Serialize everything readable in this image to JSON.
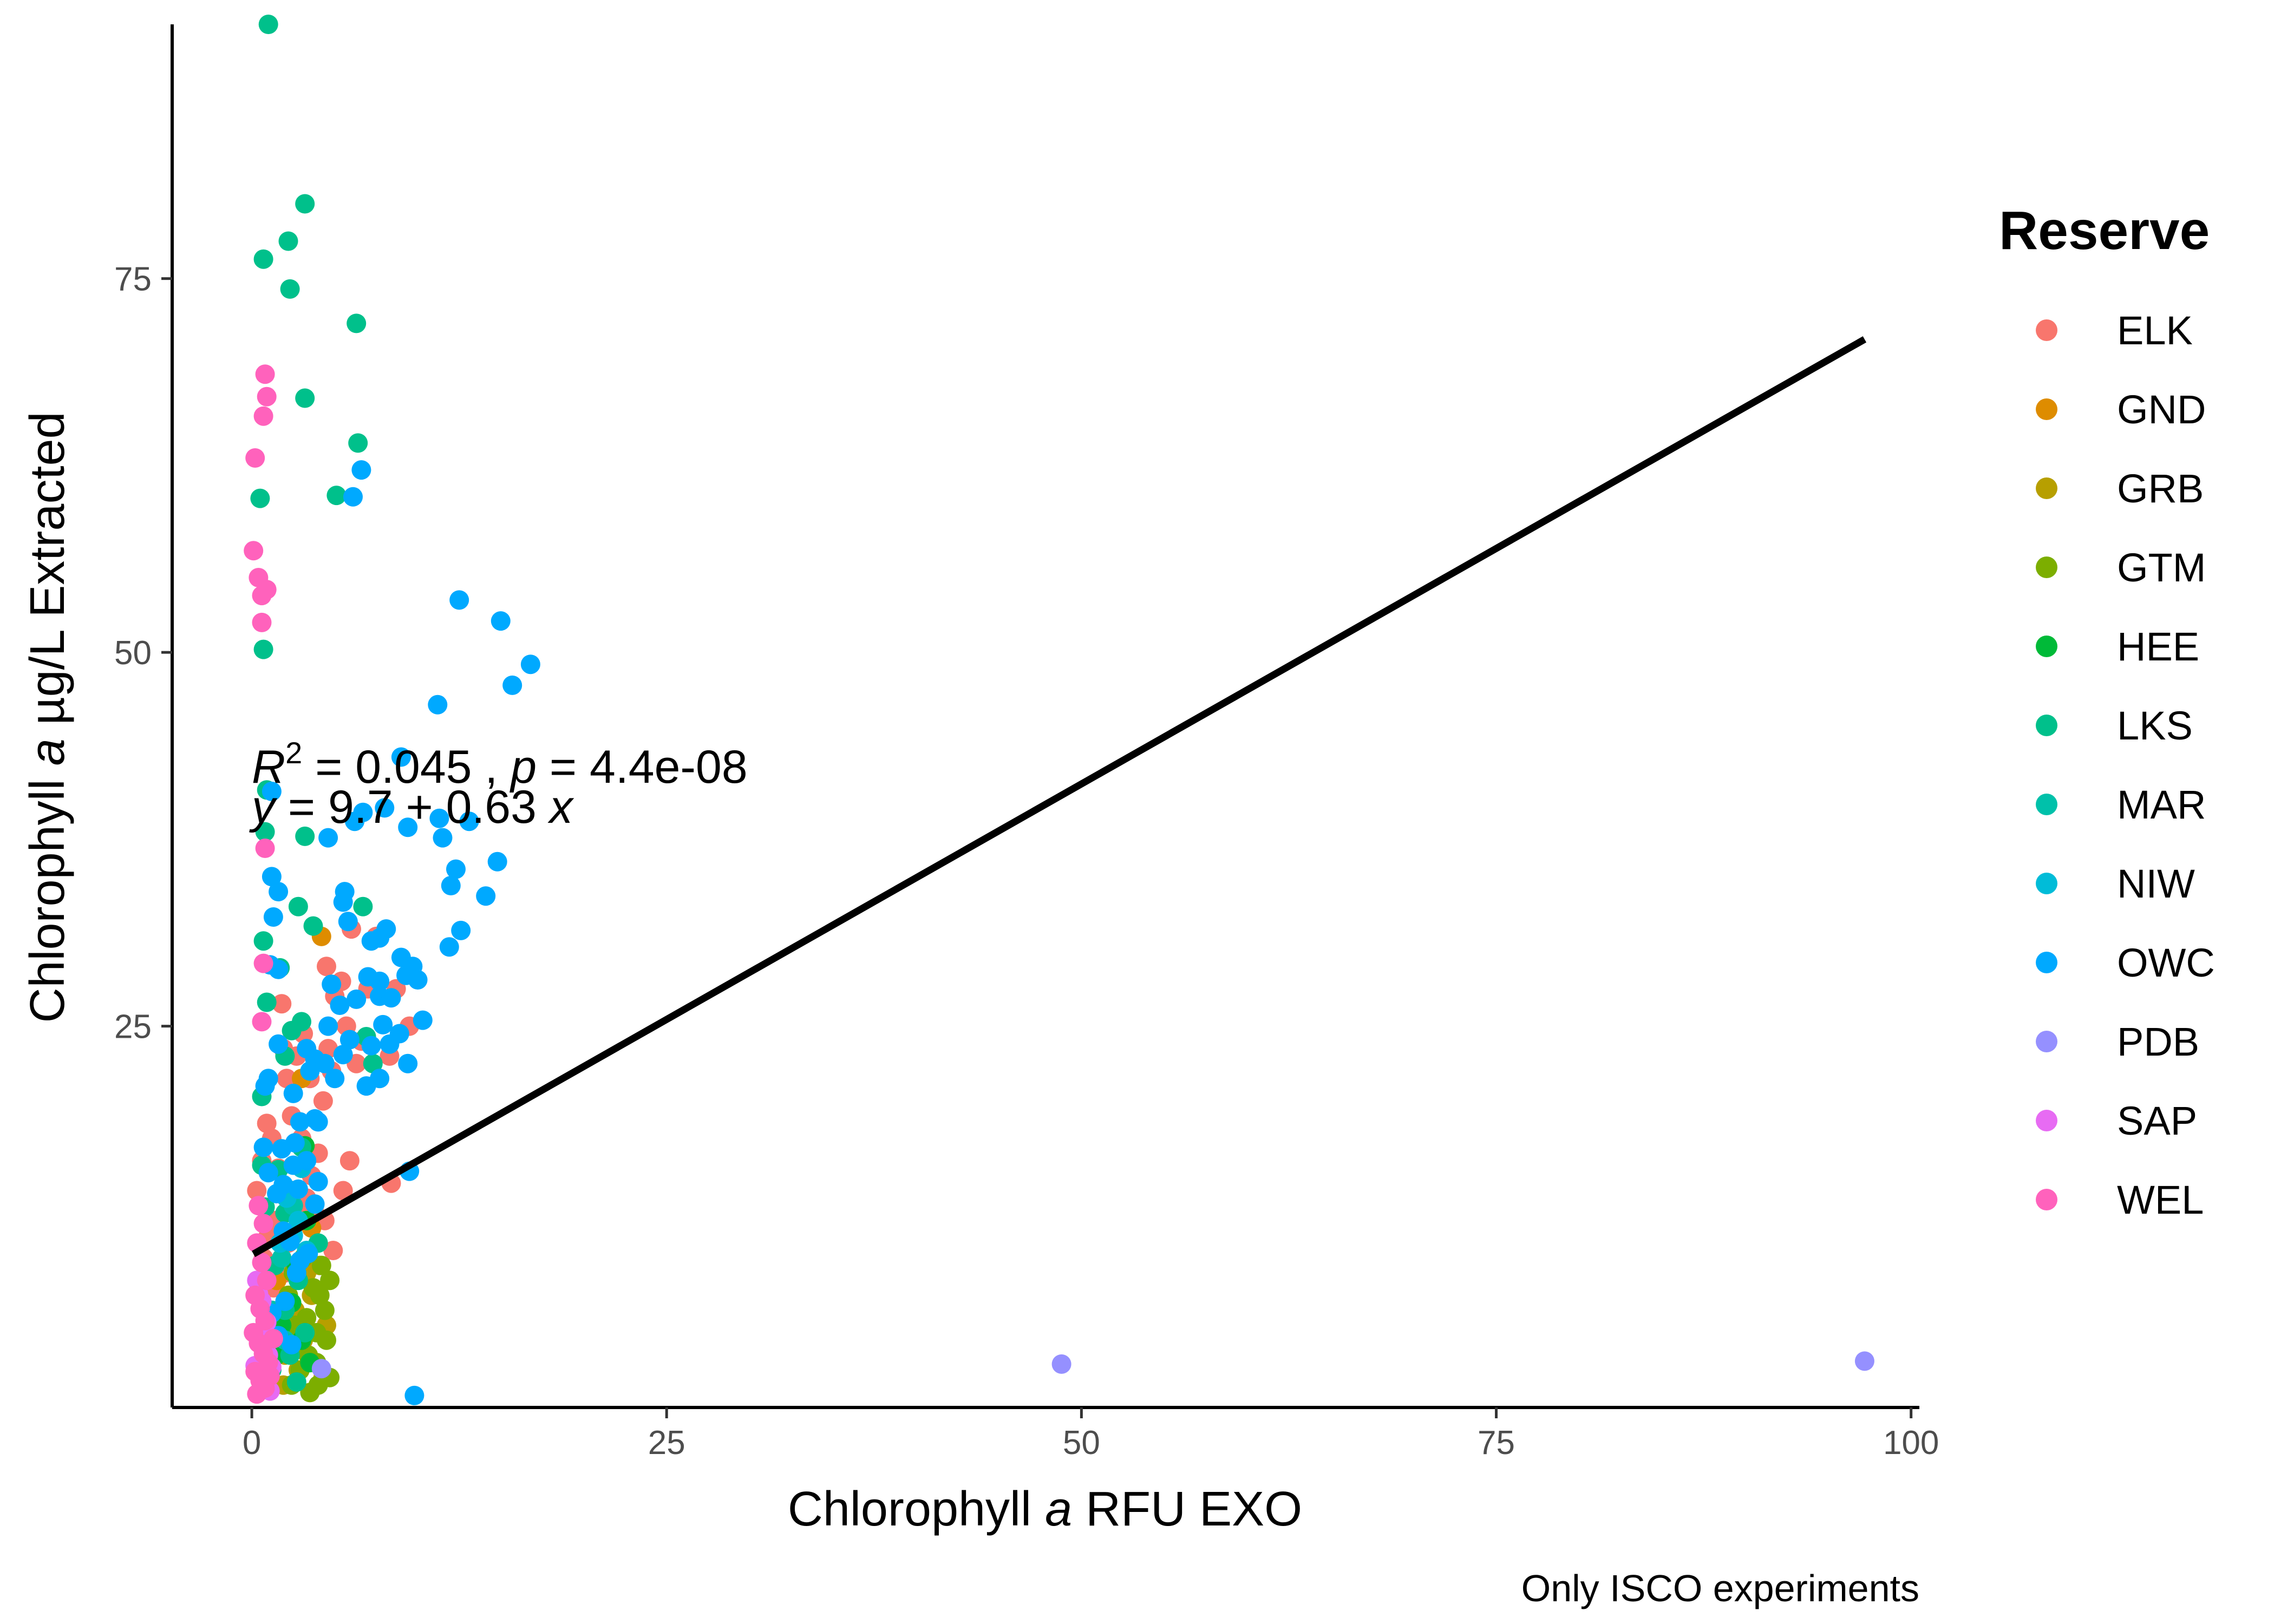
{
  "chart_data": {
    "type": "scatter",
    "xlabel_prefix": "Chlorophyll ",
    "xlabel_italic": "a",
    "xlabel_suffix": " RFU EXO",
    "ylabel_prefix": "Chlorophyll ",
    "ylabel_italic": "a",
    "ylabel_suffix": " µg/L Extracted",
    "caption": "Only ISCO experiments",
    "xlim": [
      -4.8,
      100.5
    ],
    "ylim": [
      -0.5,
      92
    ],
    "x_ticks": [
      0,
      25,
      50,
      75,
      100
    ],
    "x_tick_labels": [
      "0",
      "25",
      "50",
      "75",
      "100"
    ],
    "y_ticks": [
      25,
      50,
      75
    ],
    "y_tick_labels": [
      "25",
      "50",
      "75"
    ],
    "grid": false,
    "legend_title": "Reserve",
    "legend_position": "right",
    "annotation": {
      "r2_label": "R",
      "r2_sup": "2",
      "r2_value": " = 0.045",
      "sep": " , ",
      "p_label": "p",
      "p_value": " = 4.4e-08",
      "eq_y": "y",
      "eq_mid": " = 9.7 + 0.63 ",
      "eq_x": "x"
    },
    "regression": {
      "intercept": 9.7,
      "slope": 0.63,
      "x_range": [
        0.1,
        97.2
      ]
    },
    "series": [
      {
        "name": "ELK",
        "color": "#F8766D",
        "points": [
          [
            0.3,
            14
          ],
          [
            0.6,
            16
          ],
          [
            0.9,
            18.5
          ],
          [
            1.2,
            17.5
          ],
          [
            1.6,
            15.5
          ],
          [
            1.8,
            26.5
          ],
          [
            1.9,
            23.5
          ],
          [
            2.1,
            21.5
          ],
          [
            2.4,
            19
          ],
          [
            2.7,
            23
          ],
          [
            3.0,
            17.5
          ],
          [
            3.3,
            13.5
          ],
          [
            3.5,
            21.5
          ],
          [
            4.0,
            16.5
          ],
          [
            4.3,
            20
          ],
          [
            4.6,
            23.5
          ],
          [
            4.5,
            29
          ],
          [
            5.0,
            27
          ],
          [
            5.4,
            28
          ],
          [
            5.7,
            25
          ],
          [
            6.0,
            31.5
          ],
          [
            5.9,
            16
          ],
          [
            6.3,
            22.5
          ],
          [
            7.0,
            27.5
          ],
          [
            7.5,
            31
          ],
          [
            8.3,
            23
          ],
          [
            8.7,
            27.5
          ],
          [
            8.4,
            14.5
          ],
          [
            9.5,
            25
          ],
          [
            4.9,
            10
          ],
          [
            4.4,
            12
          ],
          [
            3.8,
            12.5
          ],
          [
            2.9,
            13
          ],
          [
            2.2,
            10.5
          ],
          [
            1.4,
            12
          ],
          [
            1.0,
            11
          ],
          [
            0.7,
            9.5
          ],
          [
            3.1,
            24.5
          ],
          [
            4.8,
            22
          ],
          [
            6.6,
            24
          ],
          [
            2.0,
            8.5
          ],
          [
            1.3,
            7.5
          ],
          [
            5.5,
            14
          ],
          [
            3.6,
            15
          ]
        ]
      },
      {
        "name": "GND",
        "color": "#DE8C00",
        "points": [
          [
            3.0,
            21.5
          ],
          [
            4.2,
            31
          ],
          [
            2.5,
            14
          ],
          [
            3.6,
            11.5
          ],
          [
            1.5,
            8
          ],
          [
            2.2,
            6.5
          ]
        ]
      },
      {
        "name": "GRB",
        "color": "#B79F00",
        "points": [
          [
            4.1,
            9
          ],
          [
            3.3,
            8.5
          ],
          [
            2.6,
            6
          ],
          [
            4.5,
            5
          ],
          [
            3.1,
            4
          ],
          [
            2.0,
            3
          ],
          [
            4.3,
            1.5
          ],
          [
            2.8,
            2
          ],
          [
            3.6,
            7
          ],
          [
            1.9,
            1
          ]
        ]
      },
      {
        "name": "GTM",
        "color": "#7CAE00",
        "points": [
          [
            2.4,
            1
          ],
          [
            2.9,
            2
          ],
          [
            3.4,
            3
          ],
          [
            3.9,
            4.5
          ],
          [
            4.4,
            6
          ],
          [
            4.7,
            8
          ],
          [
            3.7,
            7.5
          ],
          [
            2.6,
            5
          ],
          [
            4.2,
            9
          ],
          [
            3.1,
            9.5
          ],
          [
            2.2,
            7
          ],
          [
            4.0,
            1
          ],
          [
            4.7,
            1.5
          ],
          [
            3.5,
            0.5
          ],
          [
            2.8,
            3.5
          ],
          [
            3.3,
            5.5
          ],
          [
            4.1,
            7
          ],
          [
            3.9,
            2.5
          ],
          [
            2.5,
            8.5
          ],
          [
            4.5,
            4
          ]
        ]
      },
      {
        "name": "HEE",
        "color": "#00BA38",
        "points": [
          [
            1.8,
            5
          ],
          [
            2.4,
            6.5
          ],
          [
            3.0,
            4
          ],
          [
            3.3,
            12
          ],
          [
            2.0,
            11
          ],
          [
            2.7,
            9
          ],
          [
            1.5,
            3
          ],
          [
            3.5,
            2.5
          ],
          [
            2.5,
            14
          ],
          [
            3.2,
            17
          ]
        ]
      },
      {
        "name": "LKS",
        "color": "#00C08B",
        "points": [
          [
            1.0,
            92
          ],
          [
            3.2,
            80
          ],
          [
            2.2,
            77.5
          ],
          [
            0.7,
            76.3
          ],
          [
            2.3,
            74.3
          ],
          [
            6.3,
            72
          ],
          [
            3.2,
            67
          ],
          [
            6.4,
            64
          ],
          [
            5.1,
            60.5
          ],
          [
            0.5,
            60.3
          ],
          [
            0.7,
            50.2
          ],
          [
            0.9,
            40.8
          ],
          [
            0.8,
            38
          ],
          [
            3.2,
            37.7
          ],
          [
            2.8,
            33
          ],
          [
            6.7,
            33
          ],
          [
            3.7,
            31.7
          ],
          [
            0.7,
            30.7
          ],
          [
            1.7,
            28.9
          ],
          [
            0.9,
            26.6
          ],
          [
            2.4,
            24.7
          ],
          [
            0.6,
            20.3
          ],
          [
            3.0,
            16.9
          ],
          [
            0.6,
            15.7
          ],
          [
            1.6,
            15.4
          ],
          [
            2.1,
            14
          ],
          [
            0.8,
            12.9
          ],
          [
            2.0,
            12.5
          ],
          [
            4.0,
            10.5
          ],
          [
            1.4,
            9
          ],
          [
            2.8,
            8
          ],
          [
            2.0,
            6
          ],
          [
            3.2,
            4.5
          ],
          [
            2.3,
            3
          ],
          [
            1.2,
            2
          ],
          [
            2.7,
            1.2
          ],
          [
            3.0,
            25.3
          ],
          [
            2.0,
            23
          ],
          [
            6.9,
            24.3
          ],
          [
            7.3,
            22.5
          ]
        ]
      },
      {
        "name": "MAR",
        "color": "#00C1AA",
        "points": [
          [
            1.8,
            9.5
          ],
          [
            2.5,
            13
          ],
          [
            1.2,
            6
          ],
          [
            2.0,
            4
          ]
        ]
      },
      {
        "name": "NIW",
        "color": "#00BCD8",
        "points": [
          [
            3.0,
            15.5
          ],
          [
            2.1,
            13.5
          ],
          [
            2.8,
            12
          ],
          [
            1.7,
            10.5
          ],
          [
            3.3,
            10
          ],
          [
            2.5,
            11
          ]
        ]
      },
      {
        "name": "OWC",
        "color": "#00A9FF",
        "points": [
          [
            6.6,
            62.2
          ],
          [
            6.1,
            60.4
          ],
          [
            12.5,
            53.5
          ],
          [
            15.0,
            52.1
          ],
          [
            16.8,
            49.2
          ],
          [
            15.7,
            47.8
          ],
          [
            11.2,
            46.5
          ],
          [
            1.2,
            40.7
          ],
          [
            9.0,
            43
          ],
          [
            6.2,
            38.7
          ],
          [
            6.7,
            39.3
          ],
          [
            8.0,
            39.6
          ],
          [
            9.4,
            38.3
          ],
          [
            11.3,
            38.9
          ],
          [
            11.5,
            37.6
          ],
          [
            13.1,
            38.7
          ],
          [
            4.6,
            37.6
          ],
          [
            1.2,
            35
          ],
          [
            1.6,
            34
          ],
          [
            5.6,
            34
          ],
          [
            5.5,
            33.3
          ],
          [
            12.3,
            35.5
          ],
          [
            12.0,
            34.4
          ],
          [
            14.8,
            36
          ],
          [
            14.1,
            33.7
          ],
          [
            1.3,
            32.3
          ],
          [
            5.8,
            32
          ],
          [
            7.2,
            30.7
          ],
          [
            7.7,
            30.9
          ],
          [
            8.1,
            31.5
          ],
          [
            11.9,
            30.3
          ],
          [
            12.6,
            31.4
          ],
          [
            1.1,
            29.1
          ],
          [
            1.6,
            28.8
          ],
          [
            7.0,
            28.3
          ],
          [
            7.7,
            28
          ],
          [
            9.0,
            29.6
          ],
          [
            9.3,
            28.4
          ],
          [
            9.7,
            29
          ],
          [
            10.0,
            28.1
          ],
          [
            4.8,
            27.8
          ],
          [
            5.3,
            26.4
          ],
          [
            6.3,
            26.8
          ],
          [
            7.7,
            27
          ],
          [
            8.4,
            26.9
          ],
          [
            8.9,
            24.5
          ],
          [
            8.3,
            23.8
          ],
          [
            10.3,
            25.4
          ],
          [
            7.9,
            25.1
          ],
          [
            5.9,
            24.1
          ],
          [
            7.2,
            23.7
          ],
          [
            4.6,
            25
          ],
          [
            1.6,
            23.8
          ],
          [
            3.3,
            23.5
          ],
          [
            3.8,
            22.8
          ],
          [
            4.4,
            22.5
          ],
          [
            5.5,
            23.1
          ],
          [
            9.4,
            22.5
          ],
          [
            6.9,
            21
          ],
          [
            7.7,
            21.5
          ],
          [
            5.0,
            21.5
          ],
          [
            3.5,
            22
          ],
          [
            2.5,
            20.5
          ],
          [
            0.8,
            21
          ],
          [
            1.0,
            21.5
          ],
          [
            2.9,
            18.6
          ],
          [
            3.8,
            18.8
          ],
          [
            4.0,
            18.6
          ],
          [
            3.3,
            16
          ],
          [
            2.5,
            15.7
          ],
          [
            9.5,
            15.3
          ],
          [
            1.8,
            16.8
          ],
          [
            2.6,
            17.2
          ],
          [
            1.9,
            14.4
          ],
          [
            3.8,
            13.1
          ],
          [
            4.0,
            14.6
          ],
          [
            0.7,
            16.9
          ],
          [
            1.0,
            15.2
          ],
          [
            1.5,
            13.8
          ],
          [
            2.8,
            14.1
          ],
          [
            1.9,
            11.3
          ],
          [
            2.3,
            10.6
          ],
          [
            2.9,
            9.3
          ],
          [
            2.7,
            8.5
          ],
          [
            2.0,
            6.6
          ],
          [
            1.2,
            5.8
          ],
          [
            1.6,
            4.3
          ],
          [
            2.4,
            3.7
          ],
          [
            3.4,
            9.8
          ],
          [
            9.8,
            0.3
          ]
        ]
      },
      {
        "name": "PDB",
        "color": "#9590FF",
        "points": [
          [
            48.8,
            2.4
          ],
          [
            97.2,
            2.6
          ],
          [
            4.2,
            2.1
          ]
        ]
      },
      {
        "name": "SAP",
        "color": "#E76BF3",
        "points": [
          [
            0.3,
            8
          ],
          [
            0.6,
            6.6
          ],
          [
            0.9,
            5.2
          ],
          [
            0.4,
            4.3
          ],
          [
            0.7,
            3.6
          ],
          [
            1.0,
            3
          ],
          [
            0.2,
            2.3
          ],
          [
            0.5,
            1.7
          ],
          [
            0.8,
            1.1
          ],
          [
            1.1,
            0.6
          ],
          [
            1.2,
            2.2
          ],
          [
            0.4,
            7.1
          ]
        ]
      },
      {
        "name": "WEL",
        "color": "#FF62BC",
        "points": [
          [
            0.8,
            68.6
          ],
          [
            0.9,
            67.1
          ],
          [
            0.7,
            65.8
          ],
          [
            0.2,
            63
          ],
          [
            0.1,
            56.8
          ],
          [
            0.4,
            55
          ],
          [
            0.9,
            54.2
          ],
          [
            0.6,
            53.8
          ],
          [
            0.6,
            52
          ],
          [
            0.8,
            36.9
          ],
          [
            0.7,
            29.2
          ],
          [
            0.6,
            25.3
          ],
          [
            0.4,
            13
          ],
          [
            0.7,
            11.8
          ],
          [
            0.3,
            10.5
          ],
          [
            0.6,
            9.2
          ],
          [
            0.9,
            8
          ],
          [
            0.2,
            7
          ],
          [
            0.5,
            6.1
          ],
          [
            0.8,
            5.3
          ],
          [
            0.1,
            4.5
          ],
          [
            0.4,
            3.8
          ],
          [
            0.7,
            3.1
          ],
          [
            1.0,
            2.5
          ],
          [
            0.2,
            1.9
          ],
          [
            0.5,
            1.3
          ],
          [
            0.8,
            0.8
          ],
          [
            1.1,
            1.6
          ],
          [
            0.3,
            0.4
          ],
          [
            1.3,
            4.1
          ]
        ]
      }
    ]
  }
}
